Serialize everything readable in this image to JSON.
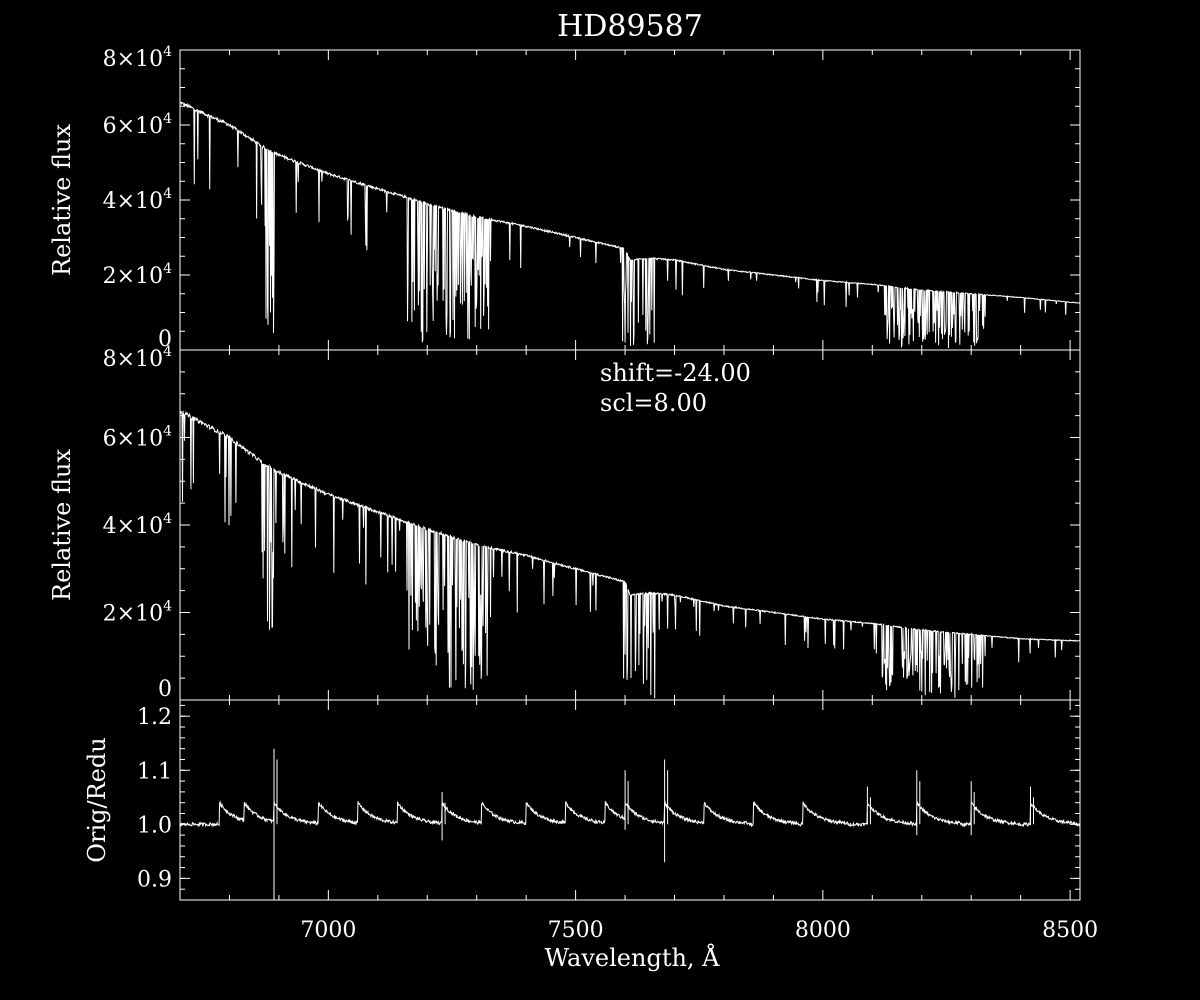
{
  "chart_data": [
    {
      "type": "line",
      "title": "HD89587",
      "ylabel": "Relative flux",
      "xlim": [
        6700,
        8520
      ],
      "ylim": [
        0,
        80000
      ],
      "y_ticks": [
        {
          "value": 0,
          "base": "0",
          "exp": ""
        },
        {
          "value": 20000,
          "base": "2×10",
          "exp": "4"
        },
        {
          "value": 40000,
          "base": "4×10",
          "exp": "4"
        },
        {
          "value": 60000,
          "base": "6×10",
          "exp": "4"
        },
        {
          "value": 80000,
          "base": "8×10",
          "exp": "4"
        }
      ],
      "continuum": {
        "x": [
          6700,
          6800,
          6870,
          6900,
          7000,
          7100,
          7200,
          7300,
          7400,
          7500,
          7600,
          7610,
          7650,
          7700,
          7800,
          7900,
          8000,
          8100,
          8200,
          8300,
          8400,
          8520
        ],
        "y": [
          66000,
          60000,
          54000,
          52000,
          47000,
          43000,
          39000,
          35500,
          33000,
          30000,
          27000,
          24000,
          24500,
          24000,
          21500,
          20000,
          18500,
          17500,
          16000,
          15000,
          14000,
          12500
        ]
      },
      "absorption_bands": [
        {
          "from": 6865,
          "to": 6890,
          "min": 3000
        },
        {
          "from": 7160,
          "to": 7330,
          "min": 2000
        },
        {
          "from": 7595,
          "to": 7660,
          "min": 0
        },
        {
          "from": 8120,
          "to": 8330,
          "min": 500
        }
      ]
    },
    {
      "type": "line",
      "ylabel": "Relative flux",
      "annotations": [
        "shift=-24.00",
        "scl=8.00"
      ],
      "xlim": [
        6700,
        8520
      ],
      "ylim": [
        0,
        80000
      ],
      "y_ticks": [
        {
          "value": 0,
          "base": "0",
          "exp": ""
        },
        {
          "value": 20000,
          "base": "2×10",
          "exp": "4"
        },
        {
          "value": 40000,
          "base": "4×10",
          "exp": "4"
        },
        {
          "value": 60000,
          "base": "6×10",
          "exp": "4"
        },
        {
          "value": 80000,
          "base": "8×10",
          "exp": "4"
        }
      ],
      "continuum": {
        "x": [
          6700,
          6800,
          6870,
          6900,
          7000,
          7100,
          7200,
          7300,
          7400,
          7500,
          7600,
          7610,
          7650,
          7700,
          7800,
          7900,
          8000,
          8100,
          8200,
          8300,
          8400,
          8520
        ],
        "y": [
          66000,
          60000,
          54000,
          52000,
          47000,
          43000,
          39000,
          35500,
          33000,
          30000,
          27000,
          24000,
          24500,
          24000,
          21500,
          20000,
          18500,
          17500,
          16000,
          15000,
          14000,
          13500
        ]
      },
      "absorption_bands": [
        {
          "from": 6865,
          "to": 6890,
          "min": 3000
        },
        {
          "from": 7160,
          "to": 7330,
          "min": 2000
        },
        {
          "from": 7595,
          "to": 7660,
          "min": 0
        },
        {
          "from": 8120,
          "to": 8330,
          "min": 500
        }
      ]
    },
    {
      "type": "line",
      "ylabel": "Orig/Redu",
      "xlabel": "Wavelength, Å",
      "xlim": [
        6700,
        8520
      ],
      "ylim": [
        0.86,
        1.23
      ],
      "x_ticks": [
        {
          "value": 7000,
          "label": "7000"
        },
        {
          "value": 7500,
          "label": "7500"
        },
        {
          "value": 8000,
          "label": "8000"
        },
        {
          "value": 8500,
          "label": "8500"
        }
      ],
      "y_ticks": [
        {
          "value": 0.9,
          "label": "0.9"
        },
        {
          "value": 1.0,
          "label": "1.0"
        },
        {
          "value": 1.1,
          "label": "1.1"
        },
        {
          "value": 1.2,
          "label": "1.2"
        }
      ],
      "baseline": 1.0,
      "spikes": [
        {
          "x": 6890,
          "high": 1.14,
          "low": 0.86
        },
        {
          "x": 7230,
          "high": 1.06,
          "low": 0.97
        },
        {
          "x": 7600,
          "high": 1.1,
          "low": 0.99
        },
        {
          "x": 7680,
          "high": 1.12,
          "low": 0.93
        },
        {
          "x": 8090,
          "high": 1.07,
          "low": 1.0
        },
        {
          "x": 8190,
          "high": 1.1,
          "low": 0.98
        },
        {
          "x": 8300,
          "high": 1.08,
          "low": 0.98
        },
        {
          "x": 8420,
          "high": 1.07,
          "low": 1.0
        }
      ]
    }
  ]
}
